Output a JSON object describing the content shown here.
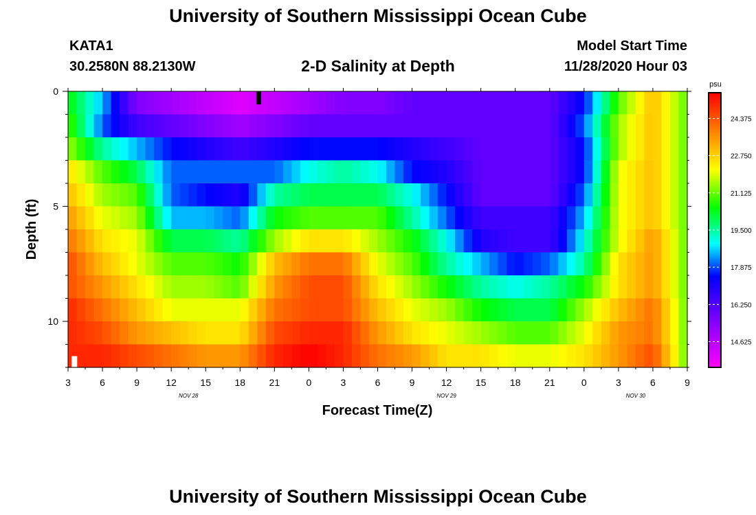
{
  "header": {
    "main_title": "University of Southern Mississippi Ocean Cube",
    "station": "KATA1",
    "coords": "30.2580N 88.2130W",
    "plot_title": "2-D Salinity at Depth",
    "model_label": "Model Start Time",
    "model_time": "11/28/2020 Hour 03",
    "bottom_title": "University of Southern Mississippi Ocean Cube"
  },
  "chart_data": {
    "type": "heatmap",
    "title": "2-D Salinity at Depth",
    "xlabel": "Forecast Time(Z)",
    "ylabel": "Depth (ft)",
    "x_tick_labels": [
      "3",
      "6",
      "9",
      "12",
      "15",
      "18",
      "21",
      "0",
      "3",
      "6",
      "9",
      "12",
      "15",
      "18",
      "21",
      "0",
      "3",
      "6",
      "9"
    ],
    "date_labels": [
      {
        "label": "NOV 28",
        "tick_index": 3.5
      },
      {
        "label": "NOV 29",
        "tick_index": 11
      },
      {
        "label": "NOV 30",
        "tick_index": 16.5
      }
    ],
    "y_tick_labels": [
      "0",
      "5",
      "10"
    ],
    "ylim": [
      0,
      12
    ],
    "colorbar": {
      "unit": "psu",
      "range": [
        13.5,
        25.5
      ],
      "ticks": [
        "24.375",
        "22.750",
        "21.125",
        "19.500",
        "17.875",
        "16.250",
        "14.625"
      ]
    },
    "x_hours_start": 3,
    "x_hours_end": 57,
    "time_points": [
      3,
      6,
      9,
      12,
      15,
      18,
      21,
      24,
      27,
      30,
      33,
      36,
      39,
      42,
      45,
      48,
      51,
      54,
      57
    ],
    "depths_ft": [
      0.5,
      1.5,
      2.5,
      3.5,
      4.5,
      5.5,
      6.5,
      7.5,
      8.5,
      9.5,
      10.5,
      11.5
    ],
    "salinity_psu": [
      [
        20.5,
        18.5,
        15.5,
        15.0,
        14.5,
        14.0,
        14.5,
        15.0,
        15.5,
        15.5,
        16.0,
        16.0,
        16.0,
        16.0,
        16.0,
        17.5,
        21.0,
        23.0,
        21.0
      ],
      [
        21.0,
        18.0,
        16.5,
        16.0,
        15.5,
        15.0,
        15.5,
        16.0,
        16.0,
        16.0,
        16.0,
        16.0,
        16.0,
        16.0,
        16.0,
        18.0,
        21.5,
        23.0,
        21.0
      ],
      [
        21.5,
        19.5,
        18.5,
        17.5,
        17.0,
        16.5,
        17.0,
        17.5,
        17.5,
        17.5,
        17.0,
        16.5,
        16.0,
        16.0,
        16.0,
        17.5,
        21.5,
        23.0,
        21.0
      ],
      [
        22.5,
        21.0,
        20.0,
        18.0,
        18.0,
        18.0,
        18.0,
        19.0,
        19.5,
        19.0,
        17.5,
        17.0,
        16.0,
        16.0,
        16.0,
        17.5,
        22.0,
        23.0,
        21.0
      ],
      [
        23.0,
        21.5,
        21.0,
        18.0,
        17.5,
        17.0,
        19.5,
        20.0,
        20.0,
        20.0,
        19.0,
        17.5,
        16.0,
        16.0,
        16.0,
        18.0,
        22.0,
        23.0,
        21.0
      ],
      [
        23.5,
        22.0,
        21.5,
        18.5,
        18.5,
        18.0,
        20.5,
        21.0,
        21.0,
        21.0,
        19.5,
        18.0,
        16.5,
        16.5,
        16.5,
        18.5,
        22.0,
        23.0,
        21.0
      ],
      [
        24.0,
        22.5,
        22.0,
        20.0,
        20.0,
        19.5,
        21.5,
        22.5,
        22.5,
        21.5,
        20.5,
        19.0,
        17.0,
        16.5,
        16.5,
        19.0,
        22.0,
        23.5,
        21.0
      ],
      [
        24.5,
        23.0,
        22.0,
        21.0,
        21.0,
        20.5,
        23.0,
        24.0,
        24.0,
        22.0,
        21.0,
        19.5,
        18.5,
        17.5,
        18.0,
        19.5,
        22.5,
        23.5,
        21.0
      ],
      [
        24.5,
        23.5,
        22.5,
        21.5,
        21.5,
        21.0,
        23.5,
        24.5,
        24.5,
        22.5,
        21.5,
        20.5,
        19.5,
        19.0,
        19.5,
        20.5,
        22.5,
        23.5,
        21.0
      ],
      [
        25.0,
        24.0,
        23.0,
        22.0,
        22.0,
        22.0,
        24.0,
        24.5,
        24.5,
        23.0,
        22.0,
        21.5,
        20.5,
        20.0,
        20.0,
        21.5,
        23.0,
        24.0,
        21.0
      ],
      [
        25.0,
        24.5,
        23.5,
        23.0,
        22.5,
        22.5,
        24.5,
        25.0,
        25.0,
        23.5,
        22.5,
        22.0,
        21.5,
        21.0,
        21.0,
        22.0,
        23.5,
        24.0,
        21.0
      ],
      [
        25.0,
        25.0,
        24.5,
        24.0,
        23.5,
        23.5,
        25.0,
        25.5,
        25.0,
        24.0,
        23.5,
        22.5,
        22.5,
        22.0,
        22.0,
        22.5,
        23.5,
        24.5,
        21.0
      ]
    ],
    "markers": [
      {
        "name": "current-time-marker",
        "x_hours": 19.6,
        "depth_ft": 0.25
      },
      {
        "name": "start-marker",
        "x_hours": 3.5,
        "depth_ft": 11.75
      }
    ]
  }
}
